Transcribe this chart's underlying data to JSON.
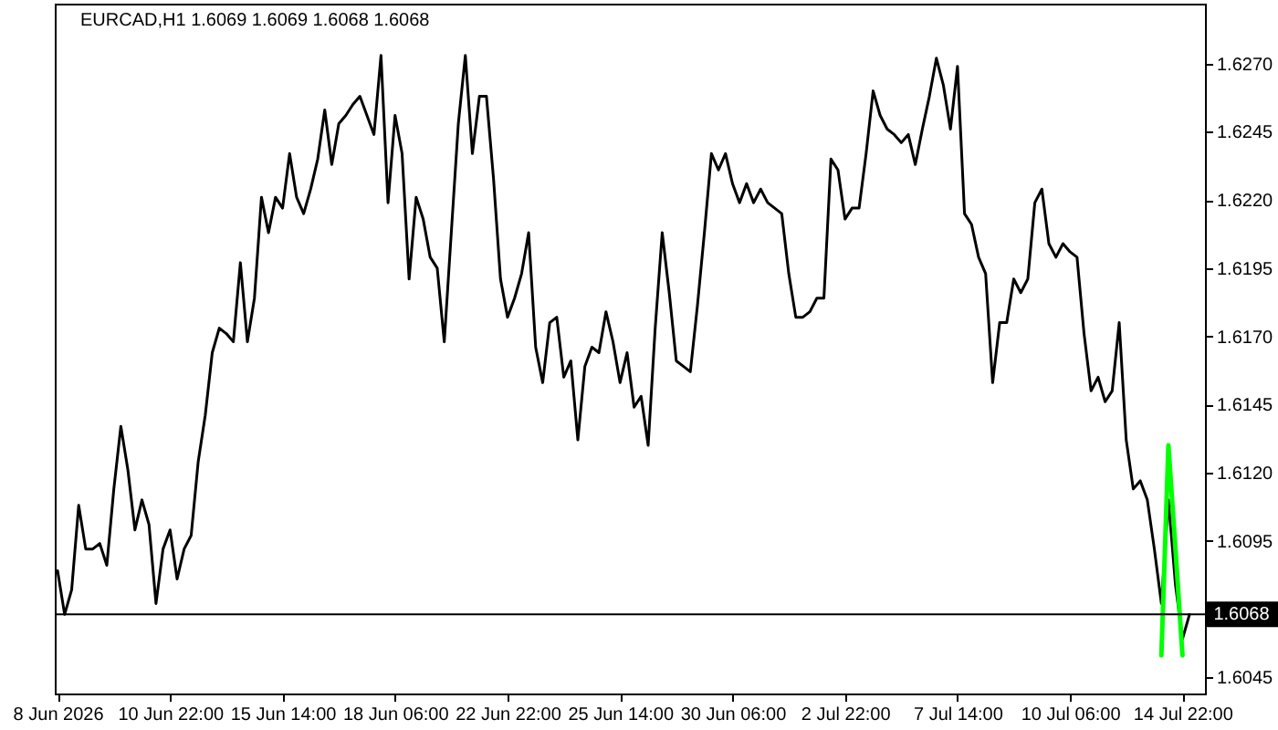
{
  "chart_data": {
    "type": "line",
    "title": "EURCAD,H1  1.6069 1.6069 1.6068 1.6068",
    "categories": [
      "8 Jun 2026",
      null,
      null,
      null,
      null,
      null,
      null,
      null,
      null,
      null,
      null,
      null,
      null,
      null,
      null,
      null,
      "10 Jun 22:00",
      null,
      null,
      null,
      null,
      null,
      null,
      null,
      null,
      null,
      null,
      null,
      null,
      null,
      null,
      null,
      "15 Jun 14:00",
      null,
      null,
      null,
      null,
      null,
      null,
      null,
      null,
      null,
      null,
      null,
      null,
      null,
      null,
      null,
      "18 Jun 06:00",
      null,
      null,
      null,
      null,
      null,
      null,
      null,
      null,
      null,
      null,
      null,
      null,
      null,
      null,
      null,
      "22 Jun 22:00",
      null,
      null,
      null,
      null,
      null,
      null,
      null,
      null,
      null,
      null,
      null,
      null,
      null,
      null,
      null,
      "25 Jun 14:00",
      null,
      null,
      null,
      null,
      null,
      null,
      null,
      null,
      null,
      null,
      null,
      null,
      null,
      null,
      null,
      "30 Jun 06:00",
      null,
      null,
      null,
      null,
      null,
      null,
      null,
      null,
      null,
      null,
      null,
      null,
      null,
      null,
      null,
      "2 Jul 22:00",
      null,
      null,
      null,
      null,
      null,
      null,
      null,
      null,
      null,
      null,
      null,
      null,
      null,
      null,
      null,
      "7 Jul 14:00",
      null,
      null,
      null,
      null,
      null,
      null,
      null,
      null,
      null,
      null,
      null,
      null,
      null,
      null,
      null,
      "10 Jul 06:00",
      null,
      null,
      null,
      null,
      null,
      null,
      null,
      null,
      null,
      null,
      null,
      null,
      null,
      null,
      null,
      "14 Jul 22:00",
      null
    ],
    "ylim": [
      1.6039,
      1.6292
    ],
    "yticks": [
      {
        "value": 1.627,
        "label": "1.6270"
      },
      1.6245,
      {
        "value": 1.622,
        "label": "1.6220"
      },
      1.6195,
      {
        "value": 1.617,
        "label": "1.6170"
      },
      1.6145,
      {
        "value": 1.612,
        "label": "1.6120"
      },
      1.6095,
      1.6045
    ],
    "series": [
      {
        "color": "#000000",
        "values": [
          1.6084,
          1.6068,
          1.6077,
          1.6108,
          1.6092,
          1.6092,
          1.6094,
          1.6086,
          1.6114,
          1.6137,
          1.6121,
          1.6099,
          1.611,
          1.6101,
          1.6072,
          1.6092,
          1.6099,
          1.6081,
          1.6092,
          1.6097,
          1.6124,
          1.6141,
          1.6164,
          1.6173,
          1.6171,
          1.6168,
          1.6197,
          1.6168,
          1.6184,
          1.6221,
          1.6208,
          1.6221,
          1.6217,
          1.6237,
          1.6221,
          1.6215,
          1.6224,
          1.6235,
          1.6253,
          1.6233,
          1.6248,
          1.6251,
          1.6255,
          1.6258,
          1.6251,
          1.6244,
          1.6273,
          1.6219,
          1.6251,
          1.6237,
          1.6191,
          1.6221,
          1.6213,
          1.6199,
          1.6195,
          1.6168,
          1.6208,
          1.6248,
          1.6273,
          1.6237,
          1.6258,
          1.6258,
          1.6228,
          1.6191,
          1.6177,
          1.6184,
          1.6193,
          1.6208,
          1.6166,
          1.6153,
          1.6175,
          1.6177,
          1.6155,
          1.6161,
          1.6132,
          1.6159,
          1.6166,
          1.6164,
          1.6179,
          1.6168,
          1.6153,
          1.6164,
          1.6144,
          1.6148,
          1.613,
          1.6173,
          1.6208,
          1.6186,
          1.6161,
          1.6159,
          1.6157,
          1.6181,
          1.6208,
          1.6237,
          1.6231,
          1.6237,
          1.6226,
          1.6219,
          1.6226,
          1.6219,
          1.6224,
          1.6219,
          1.6217,
          1.6215,
          1.6193,
          1.6177,
          1.6177,
          1.6179,
          1.6184,
          1.6184,
          1.6235,
          1.6231,
          1.6213,
          1.6217,
          1.6217,
          1.6237,
          1.626,
          1.6251,
          1.6246,
          1.6244,
          1.6241,
          1.6244,
          1.6233,
          1.6246,
          1.6258,
          1.6272,
          1.6262,
          1.6246,
          1.6269,
          1.6215,
          1.6211,
          1.6199,
          1.6193,
          1.6153,
          1.6175,
          1.6175,
          1.6191,
          1.6186,
          1.6191,
          1.6219,
          1.6224,
          1.6204,
          1.6199,
          1.6204,
          1.6201,
          1.6199,
          1.6171,
          1.615,
          1.6155,
          1.6146,
          1.615,
          1.6175,
          1.6132,
          1.6114,
          1.6117,
          1.611,
          1.6092,
          1.6072,
          1.611,
          1.6079,
          1.6059,
          1.6068
        ]
      },
      {
        "color": "#00ff00",
        "values": [
          null,
          null,
          null,
          null,
          null,
          null,
          null,
          null,
          null,
          null,
          null,
          null,
          null,
          null,
          null,
          null,
          null,
          null,
          null,
          null,
          null,
          null,
          null,
          null,
          null,
          null,
          null,
          null,
          null,
          null,
          null,
          null,
          null,
          null,
          null,
          null,
          null,
          null,
          null,
          null,
          null,
          null,
          null,
          null,
          null,
          null,
          null,
          null,
          null,
          null,
          null,
          null,
          null,
          null,
          null,
          null,
          null,
          null,
          null,
          null,
          null,
          null,
          null,
          null,
          null,
          null,
          null,
          null,
          null,
          null,
          null,
          null,
          null,
          null,
          null,
          null,
          null,
          null,
          null,
          null,
          null,
          null,
          null,
          null,
          null,
          null,
          null,
          null,
          null,
          null,
          null,
          null,
          null,
          null,
          null,
          null,
          null,
          null,
          null,
          null,
          null,
          null,
          null,
          null,
          null,
          null,
          null,
          null,
          null,
          null,
          null,
          null,
          null,
          null,
          null,
          null,
          null,
          null,
          null,
          null,
          null,
          null,
          null,
          null,
          null,
          null,
          null,
          null,
          null,
          null,
          null,
          null,
          null,
          null,
          null,
          null,
          null,
          null,
          null,
          null,
          null,
          null,
          null,
          null,
          null,
          null,
          null,
          null,
          null,
          null,
          null,
          null,
          null,
          null,
          null,
          null,
          null,
          1.6053,
          1.613,
          1.6092,
          1.6053,
          null
        ]
      }
    ],
    "ref_lines": [
      {
        "axis": "y",
        "value": 1.6068,
        "label": "1.6068",
        "color": "#000000"
      }
    ]
  }
}
